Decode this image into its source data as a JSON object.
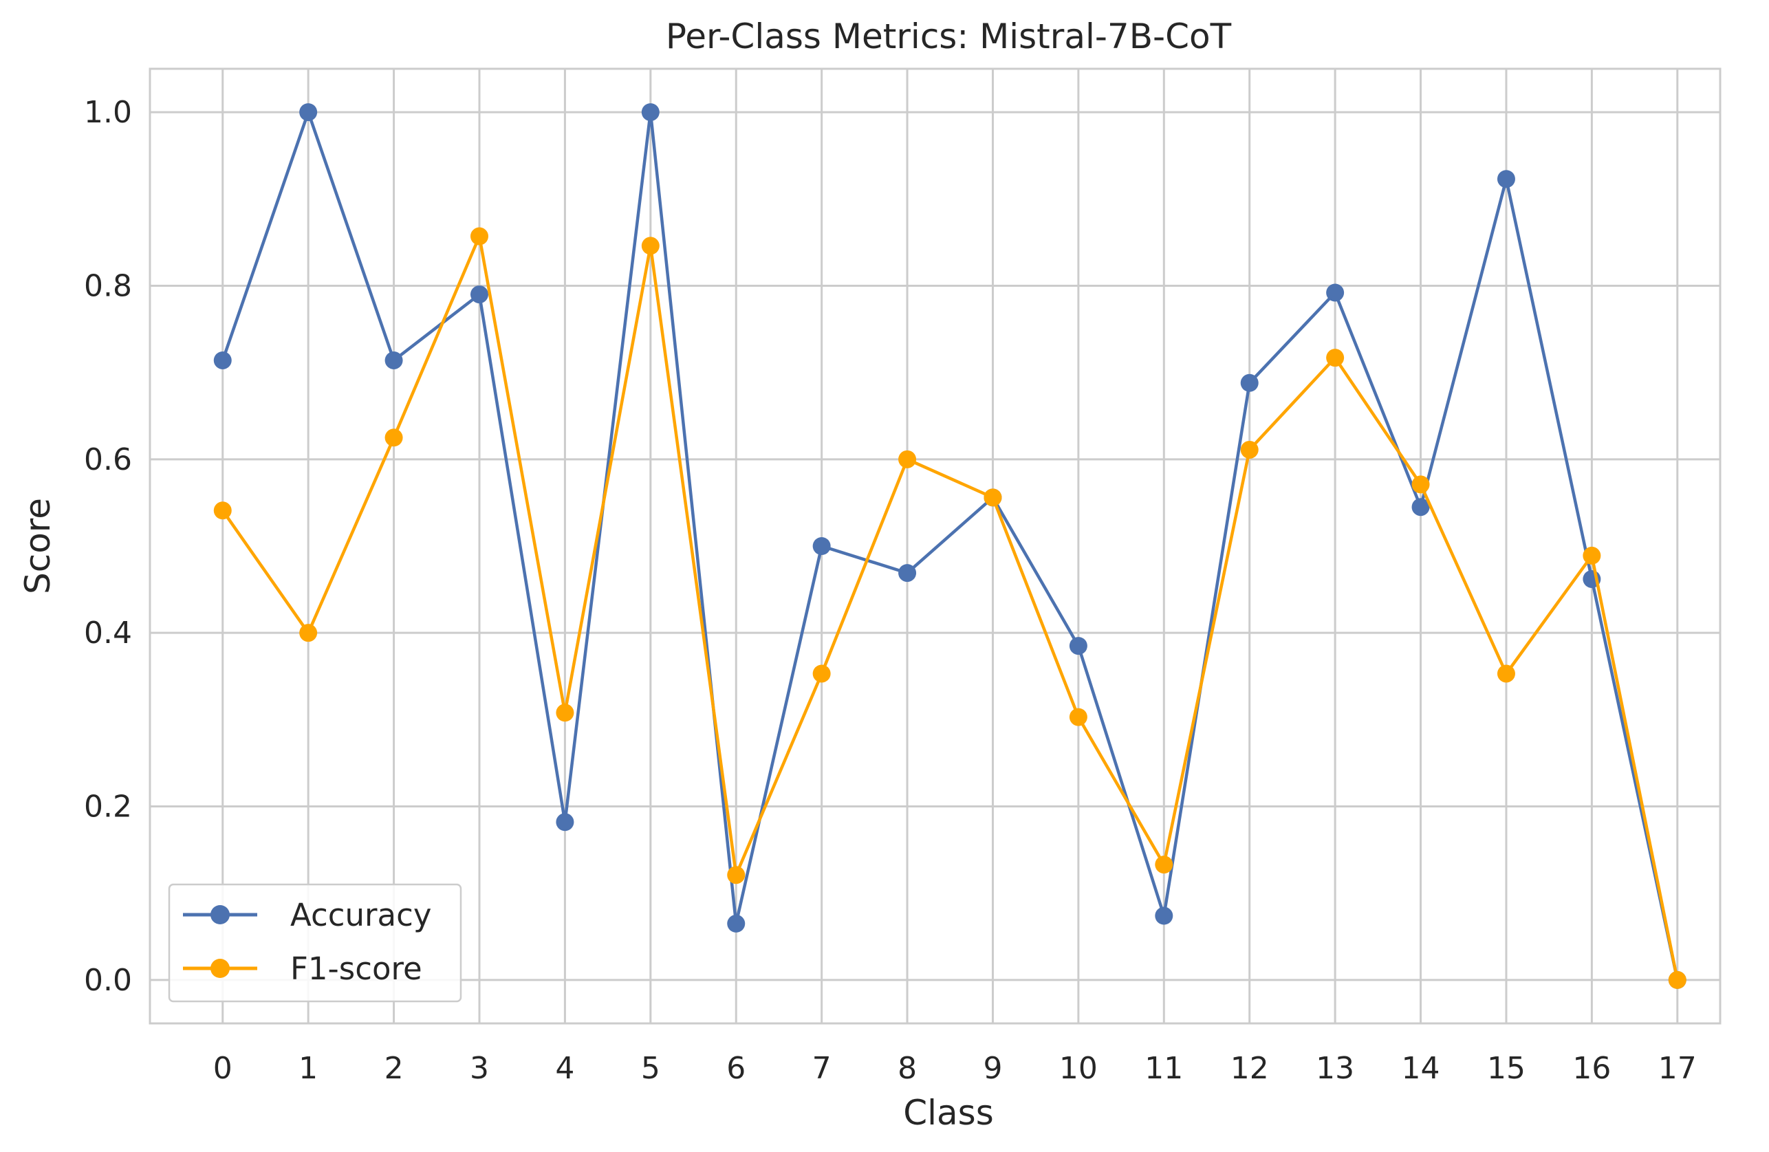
{
  "chart_data": {
    "type": "line",
    "title": "Per-Class Metrics: Mistral-7B-CoT",
    "xlabel": "Class",
    "ylabel": "Score",
    "x": [
      0,
      1,
      2,
      3,
      4,
      5,
      6,
      7,
      8,
      9,
      10,
      11,
      12,
      13,
      14,
      15,
      16,
      17
    ],
    "x_tick_labels": [
      "0",
      "1",
      "2",
      "3",
      "4",
      "5",
      "6",
      "7",
      "8",
      "9",
      "10",
      "11",
      "12",
      "13",
      "14",
      "15",
      "16",
      "17"
    ],
    "y_ticks": [
      0.0,
      0.2,
      0.4,
      0.6,
      0.8,
      1.0
    ],
    "y_tick_labels": [
      "0.0",
      "0.2",
      "0.4",
      "0.6",
      "0.8",
      "1.0"
    ],
    "ylim": [
      -0.05,
      1.05
    ],
    "xlim": [
      -0.85,
      17.5
    ],
    "grid": true,
    "legend_position": "lower-left",
    "series": [
      {
        "name": "Accuracy",
        "color": "#4c72b0",
        "marker": "circle",
        "values": [
          0.714,
          1.0,
          0.714,
          0.79,
          0.182,
          1.0,
          0.065,
          0.5,
          0.469,
          0.556,
          0.385,
          0.074,
          0.688,
          0.792,
          0.545,
          0.923,
          0.462,
          0.0
        ]
      },
      {
        "name": "F1-score",
        "color": "#ffa500",
        "marker": "circle",
        "values": [
          0.541,
          0.4,
          0.625,
          0.857,
          0.308,
          0.846,
          0.121,
          0.353,
          0.6,
          0.556,
          0.303,
          0.133,
          0.611,
          0.717,
          0.571,
          0.353,
          0.489,
          0.0
        ]
      }
    ]
  }
}
